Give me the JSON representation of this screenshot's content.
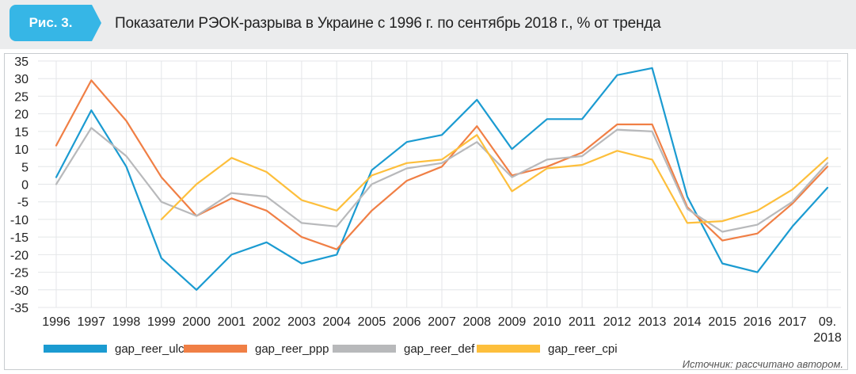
{
  "figure": {
    "label": "Рис. 3.",
    "title": "Показатели РЭОК-разрыва в Украине с 1996 г. по сентябрь 2018 г., % от тренда",
    "source": "Источник: рассчитано автором."
  },
  "chart_data": {
    "type": "line",
    "x": [
      "1996",
      "1997",
      "1998",
      "1999",
      "2000",
      "2001",
      "2002",
      "2003",
      "2004",
      "2005",
      "2006",
      "2007",
      "2008",
      "2009",
      "2010",
      "2011",
      "2012",
      "2013",
      "2014",
      "2015",
      "2016",
      "2017",
      "09.\n2018"
    ],
    "ylim": [
      -35,
      35
    ],
    "yticks": [
      35,
      30,
      25,
      20,
      15,
      10,
      5,
      0,
      -5,
      -10,
      -15,
      -20,
      -25,
      -30,
      -35
    ],
    "grid": true,
    "legend_position": "bottom",
    "series": [
      {
        "name": "gap_reer_ulc",
        "color": "#1b9bd1",
        "values": [
          2,
          21,
          5,
          -21,
          -30,
          -20,
          -16.5,
          -22.5,
          -20,
          4,
          12,
          14,
          24,
          10,
          18.5,
          18.5,
          31,
          33,
          -3.5,
          -22.5,
          -25,
          -12,
          -1
        ]
      },
      {
        "name": "gap_reer_ppp",
        "color": "#f07f45",
        "values": [
          11,
          29.5,
          18,
          2,
          -9,
          -4,
          -7.5,
          -15,
          -18.5,
          -7.5,
          1,
          5,
          16.5,
          2.5,
          5,
          9,
          17,
          17,
          -6.5,
          -16,
          -14,
          -5.5,
          5
        ]
      },
      {
        "name": "gap_reer_def",
        "color": "#b8b9bb",
        "values": [
          0,
          16,
          8,
          -5,
          -9,
          -2.5,
          -3.5,
          -11,
          -12,
          0,
          4.5,
          6,
          12,
          2,
          7,
          8,
          15.5,
          15,
          -7,
          -13.5,
          -11.5,
          -5,
          6
        ]
      },
      {
        "name": "gap_reer_cpi",
        "color": "#fdbf3c",
        "values": [
          null,
          null,
          null,
          -10,
          0,
          7.5,
          3.5,
          -4.5,
          -7.5,
          2.5,
          6,
          7,
          14,
          -2,
          4.5,
          5.5,
          9.5,
          7,
          -11,
          -10.5,
          -7.5,
          -1.5,
          7.5
        ]
      }
    ]
  }
}
